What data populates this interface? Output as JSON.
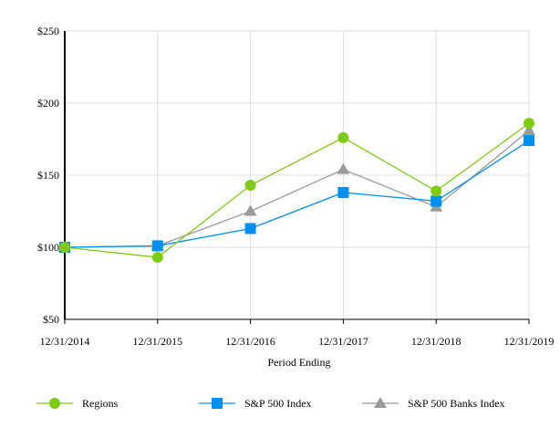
{
  "chart_data": {
    "type": "line",
    "xlabel": "Period Ending",
    "ylabel": "",
    "categories": [
      "12/31/2014",
      "12/31/2015",
      "12/31/2016",
      "12/31/2017",
      "12/31/2018",
      "12/31/2019"
    ],
    "y_ticks": [
      "$50",
      "$100",
      "$150",
      "$200",
      "$250"
    ],
    "y_tick_values": [
      50,
      100,
      150,
      200,
      250
    ],
    "ylim": [
      50,
      250
    ],
    "grid": true,
    "legend_position": "bottom",
    "series": [
      {
        "name": "Regions",
        "values": [
          100,
          93,
          143,
          176,
          139,
          186
        ],
        "color": "#7dcb12",
        "marker": "circle"
      },
      {
        "name": "S&P 500 Index",
        "values": [
          100,
          101,
          113,
          138,
          132,
          174
        ],
        "color": "#0090f0",
        "marker": "square"
      },
      {
        "name": "S&P 500 Banks Index",
        "values": [
          100,
          101,
          125,
          154,
          128,
          181
        ],
        "color": "#9a9a9a",
        "marker": "triangle"
      }
    ]
  }
}
